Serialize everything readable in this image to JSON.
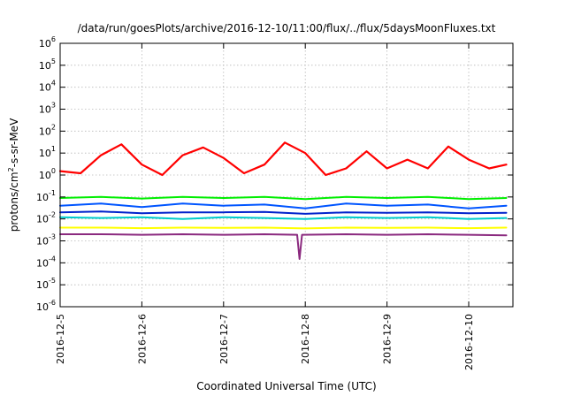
{
  "chart_data": {
    "type": "line",
    "title": "/data/run/goesPlots/archive/2016-12-10/11:00/flux/../flux/5daysMoonFluxes.txt",
    "xlabel": "Coordinated Universal Time (UTC)",
    "ylabel_base": "protons/cm",
    "ylabel_sup": "2",
    "ylabel_rest": "-s-sr-MeV",
    "x_range": [
      "2016-12-05 00:00",
      "2016-12-10 11:00"
    ],
    "x_ticks": [
      "2016-12-5",
      "2016-12-6",
      "2016-12-7",
      "2016-12-8",
      "2016-12-9",
      "2016-12-10"
    ],
    "y_scale": "log",
    "ylim": [
      1e-06,
      1000000.0
    ],
    "y_ticks": [
      {
        "base": "10",
        "exp": "-6"
      },
      {
        "base": "10",
        "exp": "-5"
      },
      {
        "base": "10",
        "exp": "-4"
      },
      {
        "base": "10",
        "exp": "-3"
      },
      {
        "base": "10",
        "exp": "-2"
      },
      {
        "base": "10",
        "exp": "-1"
      },
      {
        "base": "10",
        "exp": "0"
      },
      {
        "base": "10",
        "exp": "1"
      },
      {
        "base": "10",
        "exp": "2"
      },
      {
        "base": "10",
        "exp": "3"
      },
      {
        "base": "10",
        "exp": "4"
      },
      {
        "base": "10",
        "exp": "5"
      },
      {
        "base": "10",
        "exp": "6"
      }
    ],
    "grid": true,
    "legend": "none",
    "series": [
      {
        "color": "#ff0000",
        "x_days": [
          0,
          0.25,
          0.5,
          0.75,
          1.0,
          1.25,
          1.5,
          1.75,
          2.0,
          2.25,
          2.5,
          2.75,
          3.0,
          3.25,
          3.5,
          3.75,
          4.0,
          4.25,
          4.5,
          4.75,
          5.0,
          5.25,
          5.46
        ],
        "y": [
          1.5,
          1.2,
          8,
          25,
          3,
          1.0,
          8,
          18,
          6,
          1.2,
          3,
          30,
          10,
          1.0,
          2,
          12,
          2,
          5,
          2,
          20,
          5,
          2,
          3
        ]
      },
      {
        "color": "#00ee00",
        "x_days": [
          0,
          0.5,
          1,
          1.5,
          2,
          2.5,
          3,
          3.5,
          4,
          4.5,
          5,
          5.46
        ],
        "y": [
          0.09,
          0.1,
          0.085,
          0.1,
          0.09,
          0.1,
          0.08,
          0.1,
          0.09,
          0.1,
          0.08,
          0.09
        ]
      },
      {
        "color": "#0055ff",
        "x_days": [
          0,
          0.5,
          1,
          1.5,
          2,
          2.5,
          3,
          3.5,
          4,
          4.5,
          5,
          5.46
        ],
        "y": [
          0.04,
          0.05,
          0.035,
          0.05,
          0.04,
          0.045,
          0.03,
          0.05,
          0.04,
          0.045,
          0.03,
          0.04
        ]
      },
      {
        "color": "#0022cc",
        "x_days": [
          0,
          0.5,
          1,
          1.5,
          2,
          2.5,
          3,
          3.5,
          4,
          4.5,
          5,
          5.46
        ],
        "y": [
          0.02,
          0.022,
          0.018,
          0.02,
          0.02,
          0.021,
          0.017,
          0.02,
          0.019,
          0.02,
          0.018,
          0.019
        ]
      },
      {
        "color": "#00cccc",
        "x_days": [
          0,
          0.5,
          1,
          1.5,
          2,
          2.5,
          3,
          3.5,
          4,
          4.5,
          5,
          5.46
        ],
        "y": [
          0.012,
          0.011,
          0.012,
          0.01,
          0.012,
          0.011,
          0.01,
          0.012,
          0.011,
          0.012,
          0.01,
          0.011
        ]
      },
      {
        "color": "#ffff00",
        "x_days": [
          0,
          0.5,
          1,
          1.5,
          2,
          2.5,
          3,
          3.5,
          4,
          4.5,
          5,
          5.46
        ],
        "y": [
          0.004,
          0.004,
          0.0038,
          0.004,
          0.0039,
          0.004,
          0.0037,
          0.004,
          0.0039,
          0.004,
          0.0038,
          0.004
        ]
      },
      {
        "color": "#8b2a7f",
        "x_days": [
          0,
          0.5,
          1,
          1.5,
          2,
          2.5,
          2.9,
          2.93,
          2.96,
          3.5,
          4,
          4.5,
          5,
          5.46
        ],
        "y": [
          0.002,
          0.002,
          0.0019,
          0.002,
          0.0019,
          0.002,
          0.0019,
          0.00015,
          0.0019,
          0.002,
          0.0019,
          0.002,
          0.0019,
          0.0018
        ]
      }
    ]
  }
}
